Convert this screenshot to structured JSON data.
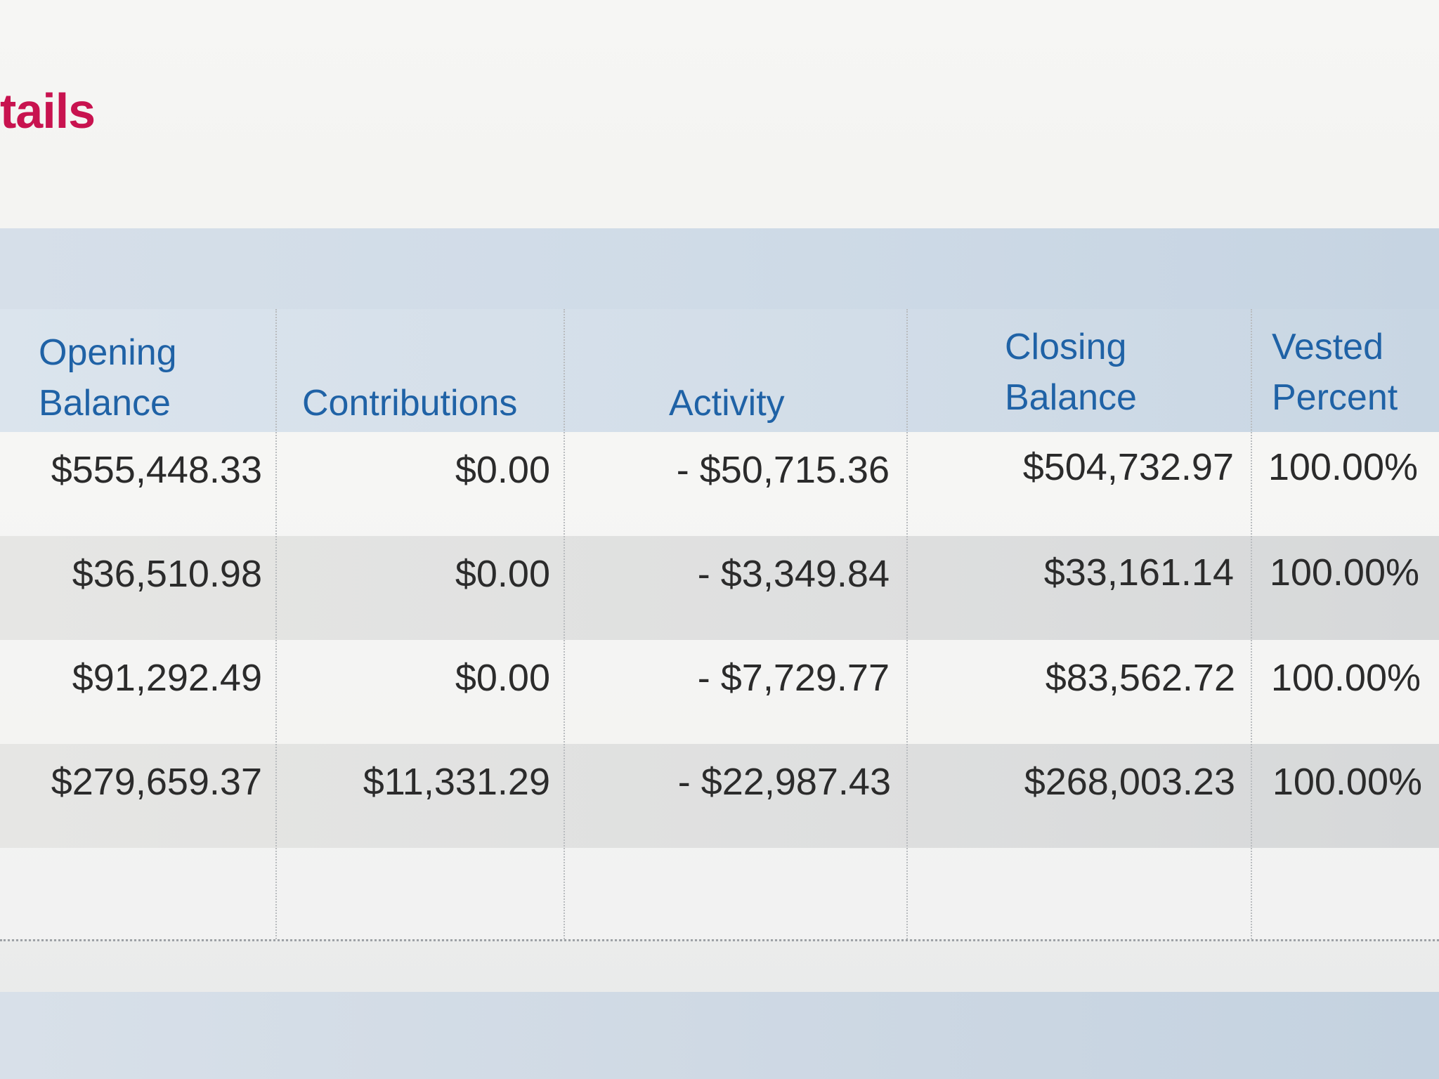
{
  "title": "tails",
  "table": {
    "headers": {
      "opening_1": "Opening",
      "opening_2": "Balance",
      "contributions": "Contributions",
      "activity": "Activity",
      "closing_1": "Closing",
      "closing_2": "Balance",
      "vested_1": "Vested",
      "vested_2": "Percent"
    },
    "rows": [
      {
        "opening": "$555,448.33",
        "contributions": "$0.00",
        "activity": "- $50,715.36",
        "closing": "$504,732.97",
        "vested": "100.00%"
      },
      {
        "opening": "$36,510.98",
        "contributions": "$0.00",
        "activity": "- $3,349.84",
        "closing": "$33,161.14",
        "vested": "100.00%"
      },
      {
        "opening": "$91,292.49",
        "contributions": "$0.00",
        "activity": "- $7,729.77",
        "closing": "$83,562.72",
        "vested": "100.00%"
      },
      {
        "opening": "$279,659.37",
        "contributions": "$11,331.29",
        "activity": "- $22,987.43",
        "closing": "$268,003.23",
        "vested": "100.00%"
      }
    ]
  }
}
